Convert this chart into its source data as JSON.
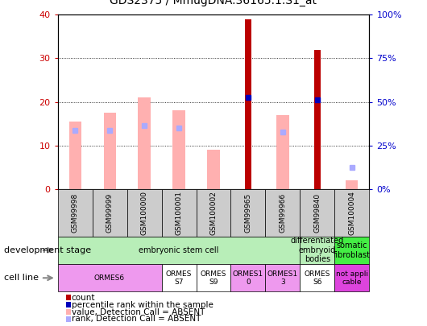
{
  "title": "GDS2375 / MmugDNA.36165.1.S1_at",
  "samples": [
    "GSM99998",
    "GSM99999",
    "GSM100000",
    "GSM100001",
    "GSM100002",
    "GSM99965",
    "GSM99966",
    "GSM99840",
    "GSM100004"
  ],
  "count_values": [
    null,
    null,
    null,
    null,
    null,
    39.0,
    null,
    32.0,
    null
  ],
  "count_absent_values": [
    15.5,
    17.5,
    21.0,
    18.0,
    9.0,
    null,
    17.0,
    null,
    2.0
  ],
  "percentile_values": [
    null,
    null,
    null,
    null,
    null,
    21.0,
    null,
    20.5,
    null
  ],
  "percentile_absent_values": [
    13.5,
    13.5,
    14.5,
    14.0,
    null,
    null,
    13.0,
    null,
    null
  ],
  "rank_absent_last": [
    5.0
  ],
  "ylim_left": [
    0,
    40
  ],
  "ylim_right": [
    0,
    100
  ],
  "yticks_left": [
    0,
    10,
    20,
    30,
    40
  ],
  "yticks_right": [
    0,
    25,
    50,
    75,
    100
  ],
  "ytick_labels_right": [
    "0%",
    "25%",
    "50%",
    "75%",
    "100%"
  ],
  "count_color": "#bb0000",
  "count_absent_color": "#ffb0b0",
  "percentile_color": "#0000bb",
  "percentile_absent_color": "#aaaaff",
  "bg_color": "#ffffff",
  "tick_color_left": "#cc0000",
  "tick_color_right": "#0000cc",
  "dev_groups": [
    {
      "label": "embryonic stem cell",
      "start": 0,
      "end": 7,
      "color": "#b8eeb8"
    },
    {
      "label": "differentiated\nembryoid\nbodies",
      "start": 7,
      "end": 8,
      "color": "#b8eeb8"
    },
    {
      "label": "somatic\nfibroblast",
      "start": 8,
      "end": 9,
      "color": "#44ee44"
    }
  ],
  "cell_groups": [
    {
      "label": "ORMES6",
      "start": 0,
      "end": 3,
      "color": "#ee99ee"
    },
    {
      "label": "ORMES\nS7",
      "start": 3,
      "end": 4,
      "color": "#ffffff"
    },
    {
      "label": "ORMES\nS9",
      "start": 4,
      "end": 5,
      "color": "#ffffff"
    },
    {
      "label": "ORMES1\n0",
      "start": 5,
      "end": 6,
      "color": "#ee99ee"
    },
    {
      "label": "ORMES1\n3",
      "start": 6,
      "end": 7,
      "color": "#ee99ee"
    },
    {
      "label": "ORMES\nS6",
      "start": 7,
      "end": 8,
      "color": "#ffffff"
    },
    {
      "label": "not appli\ncable",
      "start": 8,
      "end": 9,
      "color": "#dd44dd"
    }
  ],
  "legend_items": [
    {
      "label": "count",
      "color": "#bb0000"
    },
    {
      "label": "percentile rank within the sample",
      "color": "#0000bb"
    },
    {
      "label": "value, Detection Call = ABSENT",
      "color": "#ffb0b0"
    },
    {
      "label": "rank, Detection Call = ABSENT",
      "color": "#aaaaff"
    }
  ]
}
